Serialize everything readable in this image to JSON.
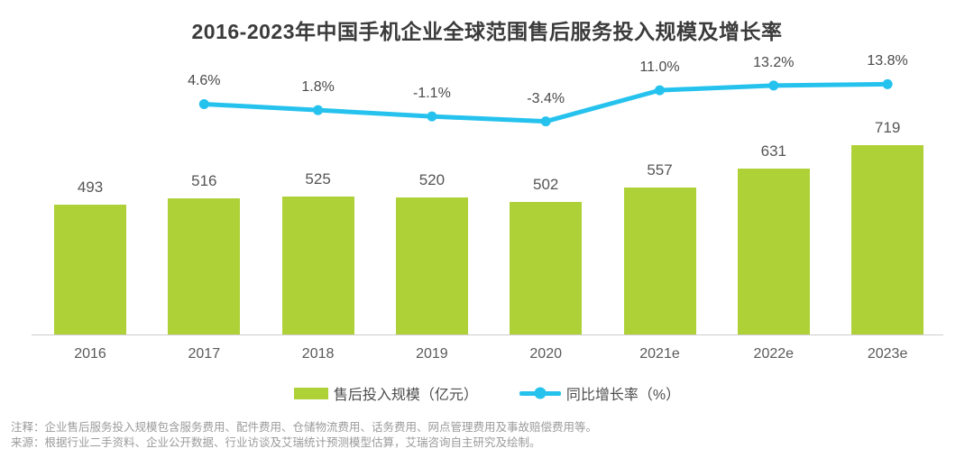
{
  "title": "2016-2023年中国手机企业全球范围售后服务投入规模及增长率",
  "colors": {
    "bar": "#AFD138",
    "line": "#26C2EE",
    "axis": "#cccccc"
  },
  "chart_data": {
    "type": "bar",
    "categories": [
      "2016",
      "2017",
      "2018",
      "2019",
      "2020",
      "2021e",
      "2022e",
      "2023e"
    ],
    "series": [
      {
        "name": "售后投入规模（亿元）",
        "type": "bar",
        "values": [
          493,
          516,
          525,
          520,
          502,
          557,
          631,
          719
        ],
        "color": "#AFD138"
      },
      {
        "name": "同比增长率（%）",
        "type": "line",
        "x": [
          "2017",
          "2018",
          "2019",
          "2020",
          "2021e",
          "2022e",
          "2023e"
        ],
        "values": [
          4.6,
          1.8,
          -1.1,
          -3.4,
          11.0,
          13.2,
          13.8
        ],
        "labels": [
          "4.6%",
          "1.8%",
          "-1.1%",
          "-3.4%",
          "11.0%",
          "13.2%",
          "13.8%"
        ],
        "color": "#26C2EE"
      }
    ],
    "title": "2016-2023年中国手机企业全球范围售后服务投入规模及增长率",
    "xlabel": "",
    "ylabel": "",
    "grid": false,
    "legend_position": "bottom",
    "bar_axis_range": [
      0,
      719
    ],
    "data_labels_shown": true
  },
  "legend": {
    "bar_label": "售后投入规模（亿元）",
    "line_label": "同比增长率（%）"
  },
  "footnotes": {
    "note": "注释：企业售后服务投入规模包含服务费用、配件费用、仓储物流费用、话务费用、网点管理费用及事故赔偿费用等。",
    "source": "来源：根据行业二手资料、企业公开数据、行业访谈及艾瑞统计预测模型估算，艾瑞咨询自主研究及绘制。"
  }
}
